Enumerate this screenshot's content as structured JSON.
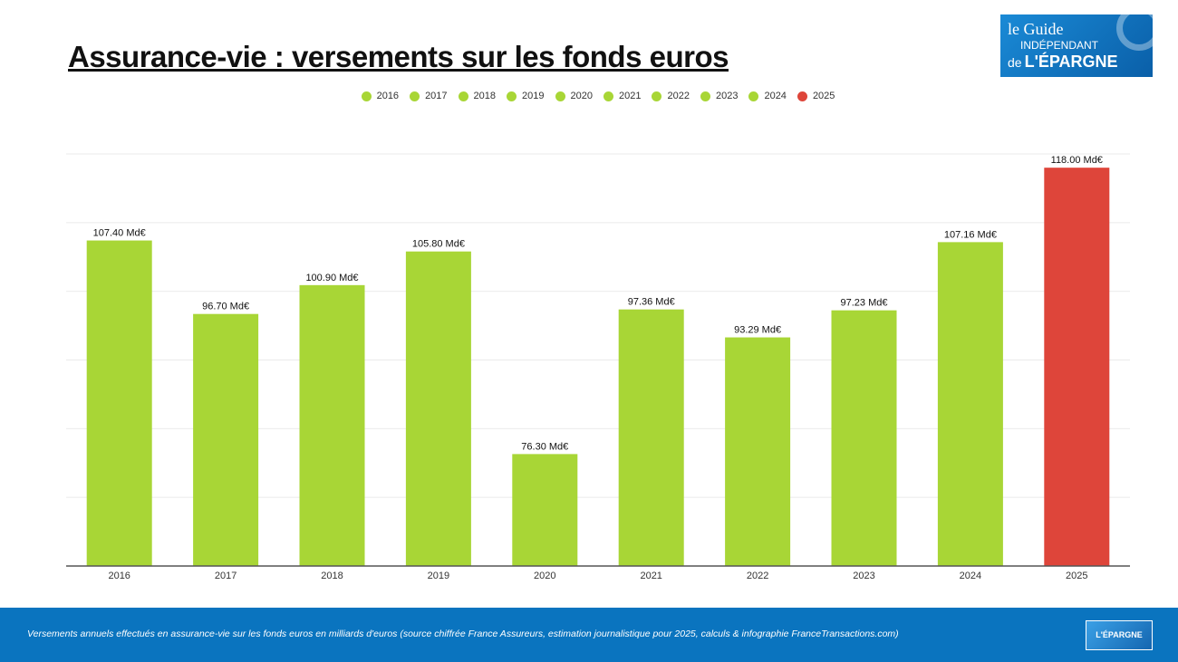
{
  "title": "Assurance-vie : versements sur les fonds euros",
  "logo": {
    "text": "le Guide INDÉPENDANT de L'ÉPARGNE FranceTransactions.com"
  },
  "footer": {
    "caption": "Versements annuels effectués en assurance-vie sur les fonds euros en milliards d'euros (source chiffrée France Assureurs, estimation journalistique pour 2025, calculs & infographie FranceTransactions.com)"
  },
  "colors": {
    "actual": "#a8d636",
    "estimate": "#de453a",
    "footer_bg": "#0a74bf"
  },
  "chart_data": {
    "type": "bar",
    "categories": [
      "2016",
      "2017",
      "2018",
      "2019",
      "2020",
      "2021",
      "2022",
      "2023",
      "2024",
      "2025"
    ],
    "values": [
      107.4,
      96.7,
      100.9,
      105.8,
      76.3,
      97.36,
      93.29,
      97.23,
      107.16,
      118.0
    ],
    "labels": [
      "107.40 Md€",
      "96.70 Md€",
      "100.90 Md€",
      "105.80 Md€",
      "76.30 Md€",
      "97.36 Md€",
      "93.29 Md€",
      "97.23 Md€",
      "107.16 Md€",
      "118.00 Md€"
    ],
    "bar_colors": [
      "#a8d636",
      "#a8d636",
      "#a8d636",
      "#a8d636",
      "#a8d636",
      "#a8d636",
      "#a8d636",
      "#a8d636",
      "#a8d636",
      "#de453a"
    ],
    "legend": [
      "2016",
      "2017",
      "2018",
      "2019",
      "2020",
      "2021",
      "2022",
      "2023",
      "2024",
      "2025"
    ],
    "legend_placement": "top",
    "ylim": [
      60,
      120
    ],
    "ygrid_step": 10,
    "grid": true,
    "y_tick_labels_shown": false
  }
}
